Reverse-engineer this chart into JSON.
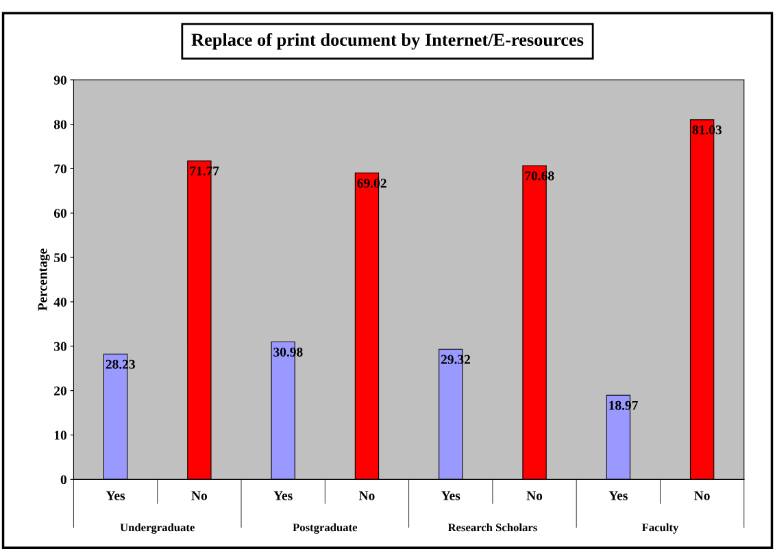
{
  "chart_data": {
    "type": "bar",
    "title": "Replace of print document by Internet/E-resources",
    "ylabel": "Percentage",
    "categories": [
      "Yes",
      "No",
      "Yes",
      "No",
      "Yes",
      "No",
      "Yes",
      "No"
    ],
    "values": [
      28.23,
      71.77,
      30.98,
      69.02,
      29.32,
      70.68,
      18.97,
      81.03
    ],
    "colors": [
      "#9999ff",
      "#ff0000",
      "#9999ff",
      "#ff0000",
      "#9999ff",
      "#ff0000",
      "#9999ff",
      "#ff0000"
    ],
    "annotations": [
      "Undergraduate",
      "Postgraduate",
      "Research Scholars",
      "Faculty"
    ],
    "ylim": [
      0,
      90
    ],
    "yticks": [
      0,
      10,
      20,
      30,
      40,
      50,
      60,
      70,
      80,
      90
    ],
    "grid": false,
    "data_labels": true
  }
}
